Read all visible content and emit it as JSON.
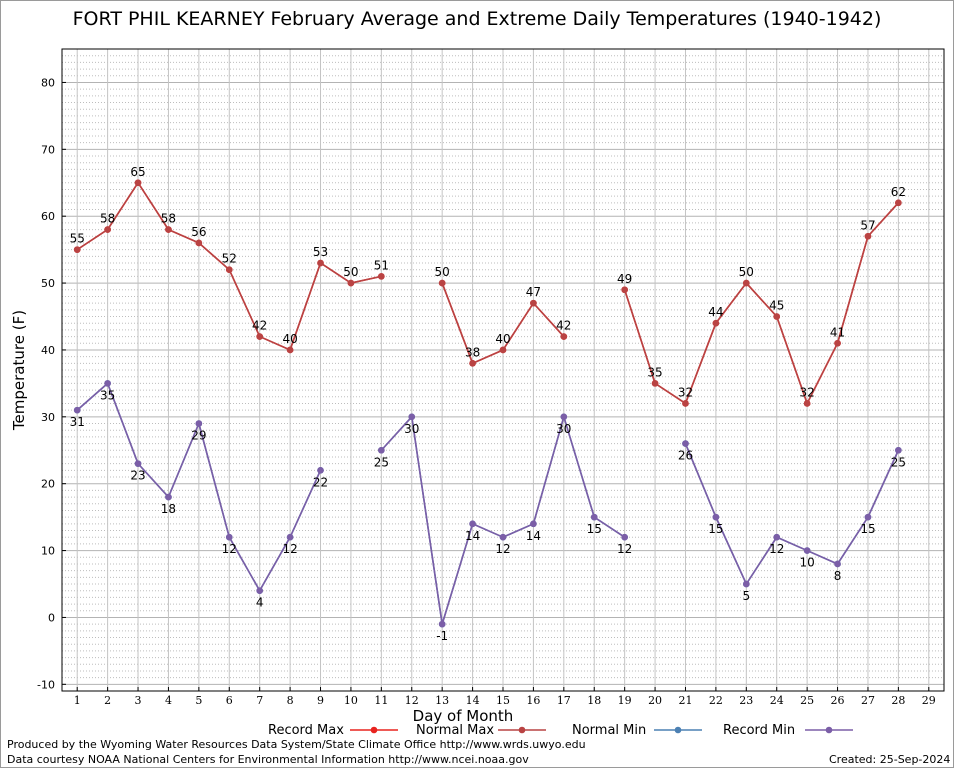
{
  "chart_data": {
    "type": "line",
    "title": "FORT PHIL KEARNEY February Average and Extreme Daily Temperatures (1940-1942)",
    "xlabel": "Day of Month",
    "ylabel": "Temperature (F)",
    "x": [
      1,
      2,
      3,
      4,
      5,
      6,
      7,
      8,
      9,
      10,
      11,
      12,
      13,
      14,
      15,
      16,
      17,
      18,
      19,
      20,
      21,
      22,
      23,
      24,
      25,
      26,
      27,
      28,
      29
    ],
    "xlim": [
      0.5,
      29.5
    ],
    "ylim": [
      -11,
      85
    ],
    "yticks": [
      -10,
      0,
      10,
      20,
      30,
      40,
      50,
      60,
      70,
      80
    ],
    "grid": true,
    "legend_position": "bottom",
    "series": [
      {
        "name": "Record Max",
        "color": "#e8231f",
        "values": [
          55,
          58,
          65,
          58,
          56,
          52,
          42,
          40,
          53,
          50,
          51,
          null,
          50,
          38,
          40,
          47,
          42,
          null,
          49,
          35,
          32,
          44,
          50,
          45,
          32,
          41,
          57,
          62,
          null
        ],
        "labels": false
      },
      {
        "name": "Normal Max",
        "color": "#b94343",
        "values": [
          55,
          58,
          65,
          58,
          56,
          52,
          42,
          40,
          53,
          50,
          51,
          null,
          50,
          38,
          40,
          47,
          42,
          null,
          49,
          35,
          32,
          44,
          50,
          45,
          32,
          41,
          57,
          62,
          null
        ],
        "labels": true
      },
      {
        "name": "Normal Min",
        "color": "#4c80b3",
        "values": [
          31,
          35,
          23,
          18,
          29,
          12,
          4,
          12,
          22,
          null,
          25,
          30,
          -1,
          14,
          12,
          14,
          30,
          15,
          12,
          null,
          26,
          15,
          5,
          12,
          10,
          8,
          15,
          25,
          null
        ],
        "labels": false
      },
      {
        "name": "Record Min",
        "color": "#7b5ea7",
        "values": [
          31,
          35,
          23,
          18,
          29,
          12,
          4,
          12,
          22,
          null,
          25,
          30,
          -1,
          14,
          12,
          14,
          30,
          15,
          12,
          null,
          26,
          15,
          5,
          12,
          10,
          8,
          15,
          25,
          null
        ],
        "labels": true
      }
    ]
  },
  "footer": {
    "produced_by": "Produced by the Wyoming Water Resources Data System/State Climate Office http://www.wrds.uwyo.edu",
    "courtesy": "Data courtesy NOAA National Centers for Environmental Information http://www.ncei.noaa.gov",
    "created": "Created:  25-Sep-2024"
  }
}
